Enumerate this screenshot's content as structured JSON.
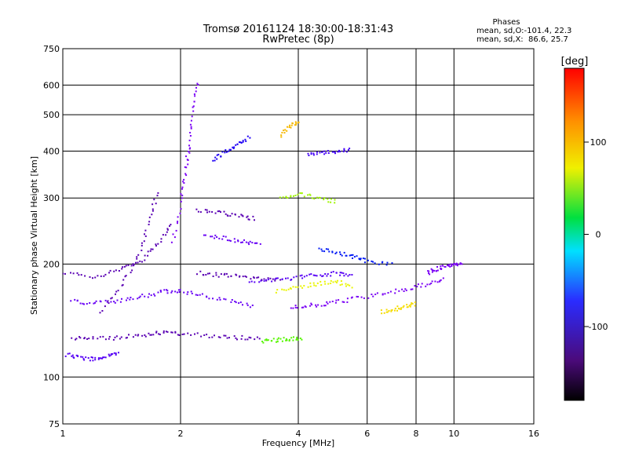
{
  "chart_data": {
    "type": "scatter",
    "title": "Tromsø 20161124 18:30:00-18:31:43",
    "subtitle": "RwPretec (8p)",
    "xlabel": "Frequency [MHz]",
    "ylabel": "Stationary phase Virtual Height [km]",
    "x_scale": "log",
    "y_scale": "log",
    "xlim": [
      1,
      16
    ],
    "ylim": [
      75,
      750
    ],
    "x_ticks": [
      1,
      2,
      4,
      6,
      8,
      10,
      16
    ],
    "y_ticks": [
      75,
      100,
      200,
      300,
      400,
      500,
      600,
      750
    ],
    "x_gridlines": [
      2,
      4,
      6,
      8,
      10
    ],
    "y_gridlines": [
      100,
      200,
      300,
      400,
      500,
      600
    ],
    "grid": true,
    "phases_box": {
      "title": "Phases",
      "line_o": "mean, sd,O:-101.4, 22.3",
      "line_x": "mean, sd,X:  86.6, 25.7"
    },
    "colorbar": {
      "label": "[deg]",
      "range": [
        -180,
        180
      ],
      "ticks": [
        100,
        0,
        -100
      ],
      "colormap": "rainbow"
    },
    "traces": [
      {
        "name": "",
        "color_deg": -110,
        "points": [
          [
            1.02,
            115
          ],
          [
            1.1,
            113
          ],
          [
            1.2,
            112
          ],
          [
            1.3,
            114
          ],
          [
            1.38,
            116
          ]
        ]
      },
      {
        "name": "",
        "color_deg": -140,
        "points": [
          [
            1.05,
            128
          ],
          [
            1.2,
            127
          ],
          [
            1.4,
            128
          ],
          [
            1.6,
            130
          ],
          [
            1.8,
            132
          ],
          [
            2.0,
            131
          ],
          [
            2.4,
            129
          ],
          [
            2.8,
            128
          ],
          [
            3.2,
            127
          ]
        ]
      },
      {
        "name": "",
        "color_deg": -115,
        "points": [
          [
            1.05,
            160
          ],
          [
            1.2,
            158
          ],
          [
            1.4,
            160
          ],
          [
            1.6,
            165
          ],
          [
            1.8,
            170
          ],
          [
            2.0,
            170
          ],
          [
            2.3,
            165
          ],
          [
            2.7,
            160
          ],
          [
            3.1,
            155
          ]
        ]
      },
      {
        "name": "",
        "color_deg": -130,
        "points": [
          [
            1.0,
            190
          ],
          [
            1.2,
            185
          ],
          [
            1.4,
            195
          ],
          [
            1.6,
            205
          ],
          [
            1.75,
            230
          ],
          [
            1.9,
            260
          ]
        ]
      },
      {
        "name": "",
        "color_deg": -145,
        "points": [
          [
            1.25,
            150
          ],
          [
            1.4,
            175
          ],
          [
            1.55,
            210
          ],
          [
            1.65,
            260
          ],
          [
            1.75,
            320
          ]
        ]
      },
      {
        "name": "",
        "color_deg": -120,
        "points": [
          [
            1.9,
            230
          ],
          [
            2.0,
            300
          ],
          [
            2.05,
            360
          ],
          [
            2.1,
            420
          ],
          [
            2.15,
            520
          ],
          [
            2.2,
            620
          ]
        ]
      },
      {
        "name": "",
        "color_deg": -135,
        "points": [
          [
            2.2,
            280
          ],
          [
            2.5,
            275
          ],
          [
            2.8,
            270
          ],
          [
            3.1,
            265
          ]
        ]
      },
      {
        "name": "",
        "color_deg": -115,
        "points": [
          [
            2.3,
            240
          ],
          [
            2.6,
            235
          ],
          [
            2.9,
            230
          ],
          [
            3.2,
            228
          ]
        ]
      },
      {
        "name": "",
        "color_deg": -125,
        "points": [
          [
            2.2,
            190
          ],
          [
            2.5,
            188
          ],
          [
            2.8,
            186
          ],
          [
            3.2,
            184
          ],
          [
            3.6,
            182
          ]
        ]
      },
      {
        "name": "",
        "color_deg": -95,
        "points": [
          [
            2.4,
            380
          ],
          [
            2.6,
            400
          ],
          [
            2.8,
            420
          ],
          [
            3.0,
            440
          ]
        ]
      },
      {
        "name": "",
        "color_deg": -110,
        "points": [
          [
            3.0,
            180
          ],
          [
            3.5,
            182
          ],
          [
            4.0,
            185
          ],
          [
            4.5,
            188
          ],
          [
            5.0,
            190
          ],
          [
            5.5,
            188
          ]
        ]
      },
      {
        "name": "",
        "color_deg": -120,
        "points": [
          [
            3.8,
            155
          ],
          [
            4.3,
            156
          ],
          [
            4.8,
            158
          ],
          [
            5.5,
            162
          ],
          [
            6.5,
            168
          ],
          [
            7.5,
            172
          ],
          [
            8.5,
            178
          ],
          [
            9.5,
            185
          ]
        ]
      },
      {
        "name": "",
        "color_deg": 70,
        "points": [
          [
            3.2,
            125
          ],
          [
            3.5,
            126
          ],
          [
            3.8,
            127
          ],
          [
            4.1,
            128
          ]
        ]
      },
      {
        "name": "",
        "color_deg": 130,
        "points": [
          [
            3.6,
            440
          ],
          [
            3.8,
            470
          ],
          [
            4.0,
            480
          ]
        ]
      },
      {
        "name": "",
        "color_deg": 110,
        "points": [
          [
            3.5,
            170
          ],
          [
            4.0,
            175
          ],
          [
            4.5,
            178
          ],
          [
            5.0,
            180
          ],
          [
            5.5,
            175
          ]
        ]
      },
      {
        "name": "",
        "color_deg": 90,
        "points": [
          [
            3.6,
            300
          ],
          [
            4.0,
            310
          ],
          [
            4.5,
            300
          ],
          [
            5.0,
            295
          ]
        ]
      },
      {
        "name": "",
        "color_deg": -80,
        "points": [
          [
            4.5,
            220
          ],
          [
            5.0,
            215
          ],
          [
            5.5,
            210
          ],
          [
            6.0,
            205
          ],
          [
            7.0,
            200
          ]
        ]
      },
      {
        "name": "",
        "color_deg": 120,
        "points": [
          [
            6.5,
            150
          ],
          [
            7.0,
            152
          ],
          [
            7.5,
            155
          ],
          [
            8.0,
            158
          ]
        ]
      },
      {
        "name": "",
        "color_deg": -105,
        "points": [
          [
            4.2,
            395
          ],
          [
            4.6,
            398
          ],
          [
            5.0,
            400
          ],
          [
            5.4,
            405
          ]
        ]
      },
      {
        "name": "",
        "color_deg": -120,
        "points": [
          [
            8.5,
            190
          ],
          [
            9.0,
            195
          ],
          [
            9.5,
            198
          ],
          [
            10.0,
            200
          ],
          [
            10.5,
            202
          ]
        ]
      }
    ]
  }
}
